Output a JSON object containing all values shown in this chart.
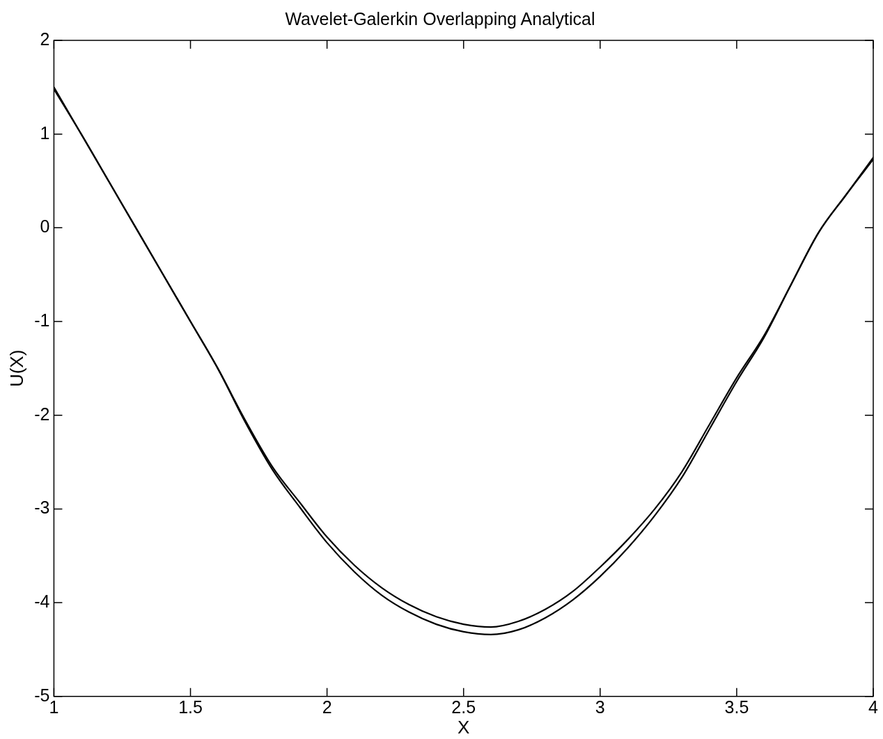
{
  "chart_data": {
    "type": "line",
    "title": "Wavelet-Galerkin Overlapping Analytical",
    "xlabel": "X",
    "ylabel": "U(X)",
    "x": [
      1.0,
      1.1,
      1.2,
      1.3,
      1.4,
      1.5,
      1.6,
      1.7,
      1.8,
      1.9,
      2.0,
      2.1,
      2.2,
      2.3,
      2.4,
      2.5,
      2.6,
      2.7,
      2.8,
      2.9,
      3.0,
      3.1,
      3.2,
      3.3,
      3.4,
      3.5,
      3.6,
      3.7,
      3.8,
      3.9,
      4.0
    ],
    "series": [
      {
        "color": "#000000",
        "values": [
          1.5,
          1.0,
          0.5,
          0.0,
          -0.5,
          -1.0,
          -1.5,
          -2.05,
          -2.55,
          -2.93,
          -3.3,
          -3.6,
          -3.84,
          -4.02,
          -4.15,
          -4.23,
          -4.26,
          -4.2,
          -4.07,
          -3.88,
          -3.62,
          -3.33,
          -3.0,
          -2.6,
          -2.1,
          -1.6,
          -1.15,
          -0.6,
          -0.05,
          0.35,
          0.75
        ]
      },
      {
        "color": "#000000",
        "values": [
          1.48,
          1.0,
          0.5,
          0.0,
          -0.5,
          -1.0,
          -1.5,
          -2.07,
          -2.58,
          -2.98,
          -3.36,
          -3.67,
          -3.92,
          -4.1,
          -4.23,
          -4.31,
          -4.34,
          -4.29,
          -4.16,
          -3.97,
          -3.72,
          -3.42,
          -3.07,
          -2.66,
          -2.15,
          -1.64,
          -1.17,
          -0.6,
          -0.05,
          0.35,
          0.73
        ]
      }
    ],
    "xlim": [
      1,
      4
    ],
    "xticks": [
      1,
      1.5,
      2,
      2.5,
      3,
      3.5,
      4
    ],
    "ylim": [
      -5,
      2
    ],
    "yticks": [
      -5,
      -4,
      -3,
      -2,
      -1,
      0,
      1,
      2
    ],
    "grid": false,
    "legend": false,
    "marker": "none",
    "line_style": "solid"
  }
}
